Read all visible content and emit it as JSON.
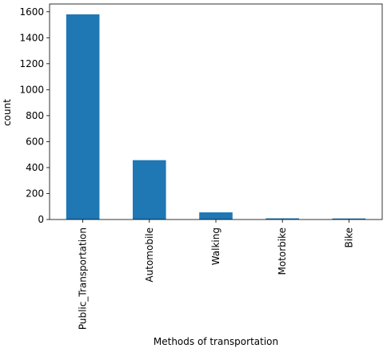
{
  "chart_data": {
    "type": "bar",
    "categories": [
      "Public_Transportation",
      "Automobile",
      "Walking",
      "Motorbike",
      "Bike"
    ],
    "values": [
      1580,
      457,
      55,
      9,
      8
    ],
    "xlabel": "Methods of transportation",
    "ylabel": "count",
    "ylim": [
      0,
      1660
    ],
    "yticks": [
      0,
      200,
      400,
      600,
      800,
      1000,
      1200,
      1400,
      1600
    ],
    "bar_color": "#1f77b4",
    "grid": false,
    "legend": "none"
  }
}
